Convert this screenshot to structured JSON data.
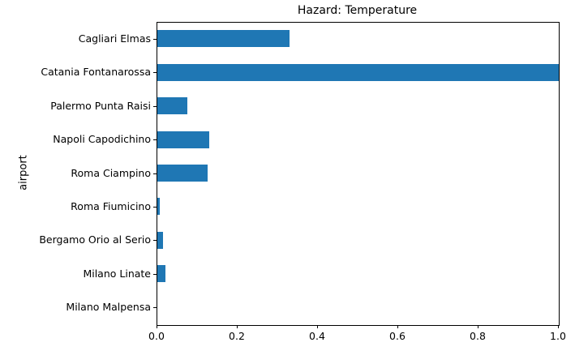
{
  "chart_data": {
    "type": "bar",
    "orientation": "horizontal",
    "title": "Hazard: Temperature",
    "xlabel": "",
    "ylabel": "airport",
    "categories": [
      "Cagliari Elmas",
      "Catania Fontanarossa",
      "Palermo Punta Raisi",
      "Napoli Capodichino",
      "Roma Ciampino",
      "Roma Fiumicino",
      "Bergamo Orio al Serio",
      "Milano Linate",
      "Milano Malpensa"
    ],
    "values": [
      0.33,
      1.0,
      0.075,
      0.13,
      0.125,
      0.006,
      0.015,
      0.02,
      0.0
    ],
    "xlim": [
      0.0,
      1.0
    ],
    "xtick_labels": [
      "0.0",
      "0.2",
      "0.4",
      "0.6",
      "0.8",
      "1.0"
    ],
    "bar_color": "#1f77b4",
    "grid": false,
    "legend": null
  }
}
